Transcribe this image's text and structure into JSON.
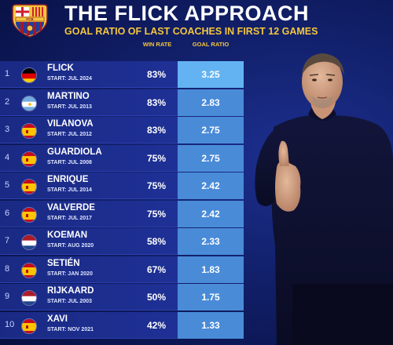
{
  "header": {
    "title": "THE FLICK APPROACH",
    "subtitle": "GOAL RATIO OF LAST COACHES IN FIRST 12 GAMES",
    "crest_text": "FCB"
  },
  "columns": {
    "win_rate": "WIN RATE",
    "goal_ratio": "GOAL RATIO"
  },
  "colors": {
    "accent": "#f4c63d",
    "goal_cell": "#4a8bd8",
    "goal_cell_top": "#63b3f2",
    "background": "#13226f"
  },
  "chart_data": {
    "type": "table",
    "title": "THE FLICK APPROACH",
    "subtitle": "GOAL RATIO OF LAST COACHES IN FIRST 12 GAMES",
    "columns": [
      "",
      "",
      "WIN RATE",
      "GOAL RATIO"
    ],
    "rows": [
      {
        "rank": "1",
        "name": "FLICK",
        "start": "START: JUL 2024",
        "flag": "germany",
        "win_rate": "83%",
        "goal_ratio": "3.25"
      },
      {
        "rank": "2",
        "name": "MARTINO",
        "start": "START: JUL 2013",
        "flag": "argentina",
        "win_rate": "83%",
        "goal_ratio": "2.83"
      },
      {
        "rank": "3",
        "name": "VILANOVA",
        "start": "START: JUL 2012",
        "flag": "spain",
        "win_rate": "83%",
        "goal_ratio": "2.75"
      },
      {
        "rank": "4",
        "name": "GUARDIOLA",
        "start": "START: JUL 2008",
        "flag": "spain",
        "win_rate": "75%",
        "goal_ratio": "2.75"
      },
      {
        "rank": "5",
        "name": "ENRIQUE",
        "start": "START: JUL 2014",
        "flag": "spain",
        "win_rate": "75%",
        "goal_ratio": "2.42"
      },
      {
        "rank": "6",
        "name": "VALVERDE",
        "start": "START: JUL 2017",
        "flag": "spain",
        "win_rate": "75%",
        "goal_ratio": "2.42"
      },
      {
        "rank": "7",
        "name": "KOEMAN",
        "start": "START: AUG 2020",
        "flag": "netherlands",
        "win_rate": "58%",
        "goal_ratio": "2.33"
      },
      {
        "rank": "8",
        "name": "SETIÉN",
        "start": "START: JAN 2020",
        "flag": "spain",
        "win_rate": "67%",
        "goal_ratio": "1.83"
      },
      {
        "rank": "9",
        "name": "RIJKAARD",
        "start": "START: JUL 2003",
        "flag": "netherlands",
        "win_rate": "50%",
        "goal_ratio": "1.75"
      },
      {
        "rank": "10",
        "name": "XAVI",
        "start": "START: NOV 2021",
        "flag": "spain",
        "win_rate": "42%",
        "goal_ratio": "1.33"
      }
    ]
  },
  "icons": {
    "crest": "fc-barcelona-crest-icon",
    "person": "coach-thumbs-up-photo"
  }
}
